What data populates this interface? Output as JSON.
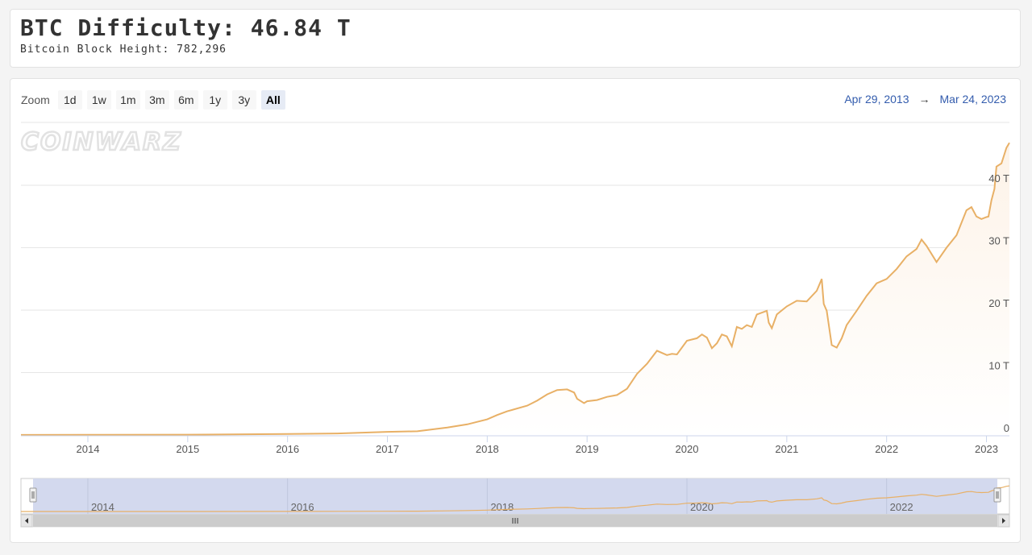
{
  "header": {
    "title": "BTC Difficulty: 46.84 T",
    "subtitle": "Bitcoin Block Height: 782,296"
  },
  "zoom": {
    "label": "Zoom",
    "buttons": [
      "1d",
      "1w",
      "1m",
      "3m",
      "6m",
      "1y",
      "3y",
      "All"
    ],
    "active": "All"
  },
  "range": {
    "from": "Apr 29, 2013",
    "arrow": "→",
    "to": "Mar 24, 2023"
  },
  "logo": "COINWARZ",
  "colors": {
    "line": "#e8b066",
    "area": "#fdf3e8",
    "navigator_mask": "#d3d9ee",
    "grid": "#e6e6e6"
  },
  "chart_data": {
    "type": "area",
    "title": "",
    "xlabel": "",
    "ylabel": "",
    "x_ticks": [
      "2014",
      "2015",
      "2016",
      "2017",
      "2018",
      "2019",
      "2020",
      "2021",
      "2022",
      "2023"
    ],
    "y_ticks": [
      "0",
      "10 T",
      "20 T",
      "30 T",
      "40 T"
    ],
    "ylim": [
      0,
      50
    ],
    "xlim": [
      2013.33,
      2023.23
    ],
    "grid": true,
    "legend": "none",
    "navigator_ticks": [
      "2014",
      "2016",
      "2018",
      "2020",
      "2022"
    ],
    "series": [
      {
        "x": [
          2013.33,
          2014.0,
          2015.0,
          2016.0,
          2016.5,
          2017.0,
          2017.3,
          2017.6,
          2017.8,
          2018.0,
          2018.1,
          2018.2,
          2018.4,
          2018.5,
          2018.6,
          2018.7,
          2018.8,
          2018.87,
          2018.9,
          2018.97,
          2019.0,
          2019.1,
          2019.2,
          2019.3,
          2019.4,
          2019.5,
          2019.6,
          2019.7,
          2019.8,
          2019.85,
          2019.9,
          2020.0,
          2020.1,
          2020.15,
          2020.2,
          2020.25,
          2020.3,
          2020.35,
          2020.4,
          2020.45,
          2020.5,
          2020.55,
          2020.6,
          2020.65,
          2020.7,
          2020.8,
          2020.82,
          2020.85,
          2020.9,
          2021.0,
          2021.1,
          2021.2,
          2021.3,
          2021.35,
          2021.37,
          2021.4,
          2021.45,
          2021.5,
          2021.55,
          2021.6,
          2021.7,
          2021.8,
          2021.9,
          2022.0,
          2022.1,
          2022.2,
          2022.3,
          2022.35,
          2022.4,
          2022.5,
          2022.6,
          2022.7,
          2022.8,
          2022.85,
          2022.9,
          2022.95,
          2023.0,
          2023.02,
          2023.05,
          2023.08,
          2023.1,
          2023.15,
          2023.2,
          2023.23
        ],
        "y": [
          0.01,
          0.02,
          0.05,
          0.16,
          0.25,
          0.5,
          0.6,
          1.2,
          1.7,
          2.5,
          3.2,
          3.8,
          4.7,
          5.5,
          6.5,
          7.2,
          7.3,
          6.8,
          5.8,
          5.1,
          5.4,
          5.6,
          6.1,
          6.4,
          7.4,
          9.8,
          11.4,
          13.5,
          12.8,
          13.0,
          12.9,
          15.1,
          15.5,
          16.1,
          15.6,
          13.9,
          14.7,
          16.1,
          15.8,
          14.2,
          17.3,
          17.0,
          17.6,
          17.3,
          19.3,
          19.9,
          18.0,
          17.1,
          19.3,
          20.6,
          21.5,
          21.4,
          23.1,
          25.0,
          21.0,
          19.9,
          14.4,
          14.0,
          15.5,
          17.6,
          19.9,
          22.3,
          24.3,
          25.0,
          26.6,
          28.6,
          29.8,
          31.3,
          30.3,
          27.7,
          30.0,
          32.0,
          36.0,
          36.5,
          35.0,
          34.6,
          34.9,
          35.0,
          37.6,
          39.4,
          43.0,
          43.5,
          46.0,
          46.8
        ]
      }
    ]
  }
}
